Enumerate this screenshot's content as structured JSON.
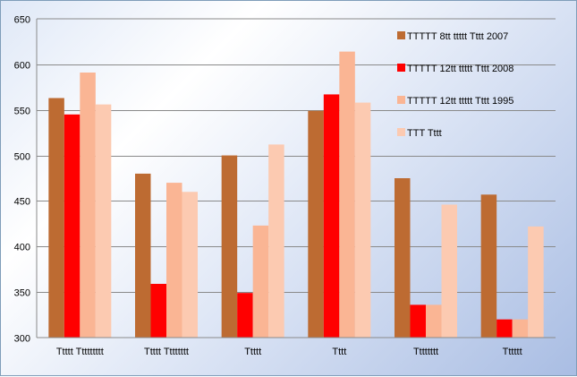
{
  "chart_data": {
    "type": "bar",
    "categories": [
      "Ttttt Ttttttttt",
      "Ttttt Tttttttt",
      "Ttttt",
      "Tttt",
      "Tttttttt",
      "Tttttt"
    ],
    "series": [
      {
        "name": "TTTTT 8tt ttttt Tttt 2007",
        "color": "#bd6b32",
        "values": [
          563,
          480,
          500,
          549,
          475,
          457
        ]
      },
      {
        "name": "TTTTT 12tt ttttt Tttt 2008",
        "color": "#ff0000",
        "values": [
          545,
          359,
          349,
          567,
          336,
          320
        ]
      },
      {
        "name": "TTTTT 12tt ttttt Tttt 1995",
        "color": "#fab594",
        "values": [
          591,
          470,
          423,
          614,
          336,
          320
        ]
      },
      {
        "name": "TTT Tttt",
        "color": "#fccab1",
        "values": [
          556,
          460,
          512,
          558,
          446,
          422
        ]
      }
    ],
    "y_ticks": [
      "300",
      "350",
      "400",
      "450",
      "500",
      "550",
      "600",
      "650"
    ],
    "ylim": [
      300,
      650
    ],
    "grid": true,
    "legend_position": "top-right"
  }
}
